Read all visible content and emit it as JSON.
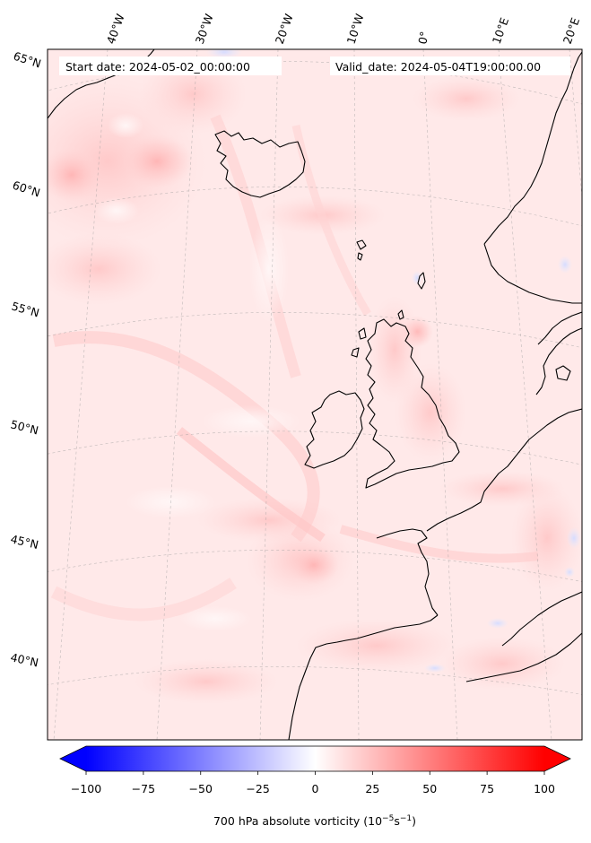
{
  "figure": {
    "start_label": "Start date: 2024-05-02_00:00:00",
    "valid_label": "Valid_date: 2024-05-04T19:00:00.00",
    "variable": "700 hPa absolute vorticity",
    "unit_base": "10",
    "unit_exp1": "−5",
    "unit_mid": "s",
    "unit_exp2": "−1"
  },
  "longitude_labels": [
    "40°W",
    "30°W",
    "20°W",
    "10°W",
    "0°",
    "10°E",
    "20°E"
  ],
  "latitude_labels": [
    "65°N",
    "60°N",
    "55°N",
    "50°N",
    "45°N",
    "40°N"
  ],
  "colorbar": {
    "min": -100,
    "max": 100,
    "tick_values": [
      -100,
      -75,
      -50,
      -25,
      0,
      25,
      50,
      75,
      100
    ],
    "tick_labels": [
      "−100",
      "−75",
      "−50",
      "−25",
      "0",
      "25",
      "50",
      "75",
      "100"
    ],
    "colormap": "bwr",
    "extend": "both",
    "colors": {
      "low": "#0000ff",
      "mid": "#ffffff",
      "high": "#ff0000"
    }
  },
  "colors": {
    "background_field": "#ffe9e9",
    "coastline": "#000000",
    "gridline": "#999999"
  }
}
